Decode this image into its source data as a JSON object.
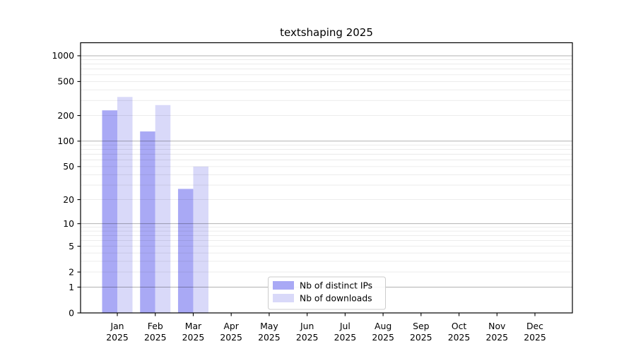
{
  "figure": {
    "background": "#ffffff"
  },
  "chart_data": {
    "type": "bar",
    "title": "textshaping 2025",
    "x_months": [
      "Jan",
      "Feb",
      "Mar",
      "Apr",
      "May",
      "Jun",
      "Jul",
      "Aug",
      "Sep",
      "Oct",
      "Nov",
      "Dec"
    ],
    "x_year": "2025",
    "series": [
      {
        "name": "Nb of distinct IPs",
        "color": "#a9a9f5",
        "values": [
          230,
          130,
          27,
          0,
          0,
          0,
          0,
          0,
          0,
          0,
          0,
          0
        ]
      },
      {
        "name": "Nb of downloads",
        "color": "#d9d9f9",
        "values": [
          330,
          265,
          50,
          0,
          0,
          0,
          0,
          0,
          0,
          0,
          0,
          0
        ]
      }
    ],
    "y_scale": "log10(1+x)",
    "y_ticks": [
      0,
      1,
      2,
      5,
      10,
      20,
      50,
      100,
      200,
      500,
      1000
    ],
    "y_grid_major": [
      1,
      10,
      100,
      1000
    ],
    "y_grid_minor": [
      2,
      3,
      4,
      5,
      6,
      7,
      8,
      9,
      20,
      30,
      40,
      50,
      60,
      70,
      80,
      90,
      200,
      300,
      400,
      500,
      600,
      700,
      800,
      900
    ],
    "ylim": [
      0,
      1400
    ],
    "grid": true,
    "legend_position": "lower-center"
  },
  "colors": {
    "bar_distinct_ips": "#a9a9f5",
    "bar_downloads": "#d9d9f9",
    "grid_major_stroke": "#000000",
    "grid_major_opacity": "0.30",
    "grid_minor_stroke": "#000000",
    "grid_minor_opacity": "0.085",
    "axis": "#000000",
    "legend_border": "#cccccc",
    "text": "#000000",
    "background": "#ffffff"
  }
}
